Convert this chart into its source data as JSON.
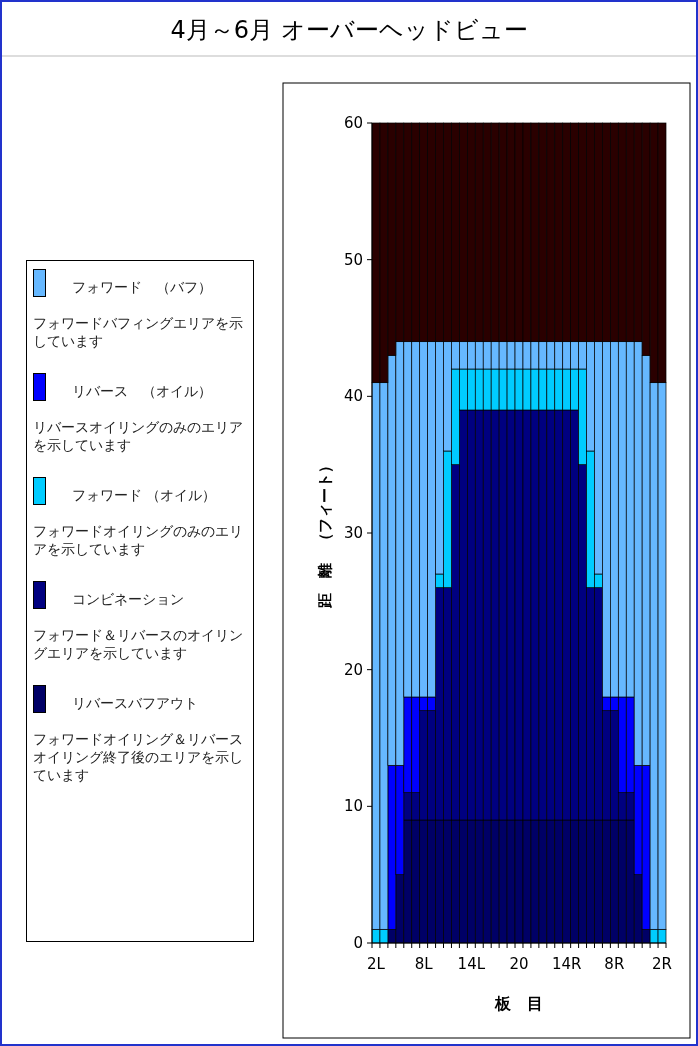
{
  "chart_data": {
    "type": "bar",
    "stacked": true,
    "title": "4月～6月 オーバーヘッドビュー",
    "xlabel": "板　目",
    "ylabel": "距　離　（フィート）",
    "categories": [
      "2L",
      null,
      null,
      null,
      null,
      null,
      "8L",
      null,
      null,
      null,
      null,
      null,
      "14L",
      null,
      null,
      null,
      null,
      null,
      "20",
      null,
      null,
      null,
      null,
      null,
      "14R",
      null,
      null,
      null,
      null,
      null,
      "8R",
      null,
      null,
      null,
      null,
      null,
      "2R"
    ],
    "series": [
      {
        "name": "リバースバフアウト",
        "color": "#000066",
        "values": [
          0,
          0,
          1,
          5,
          9,
          9,
          9,
          9,
          9,
          9,
          9,
          9,
          9,
          9,
          9,
          9,
          9,
          9,
          9,
          9,
          9,
          9,
          9,
          9,
          9,
          9,
          9,
          9,
          9,
          9,
          9,
          9,
          9,
          5,
          1,
          0,
          0
        ]
      },
      {
        "name": "コンビネーション",
        "color": "#000080",
        "values": [
          0,
          0,
          0,
          0,
          2,
          2,
          8,
          8,
          17,
          17,
          26,
          30,
          30,
          30,
          30,
          30,
          30,
          30,
          30,
          30,
          30,
          30,
          30,
          30,
          30,
          30,
          26,
          17,
          17,
          8,
          8,
          2,
          2,
          0,
          0,
          0,
          0
        ]
      },
      {
        "name": "フォワード （オイル）",
        "color": "#00ccff",
        "values": [
          1,
          1,
          0,
          0,
          0,
          0,
          0,
          0,
          1,
          10,
          7,
          3,
          3,
          3,
          3,
          3,
          3,
          3,
          3,
          3,
          3,
          3,
          3,
          3,
          3,
          3,
          7,
          10,
          1,
          0,
          0,
          0,
          0,
          0,
          0,
          1,
          1
        ]
      },
      {
        "name": "リバース　（オイル）",
        "color": "#0000ff",
        "values": [
          0,
          0,
          12,
          8,
          7,
          7,
          1,
          1,
          0,
          0,
          0,
          0,
          0,
          0,
          0,
          0,
          0,
          0,
          0,
          0,
          0,
          0,
          0,
          0,
          0,
          0,
          0,
          0,
          0,
          1,
          1,
          7,
          7,
          8,
          12,
          0,
          0
        ]
      },
      {
        "name": "フォワード　（バフ）",
        "color": "#66b8ff",
        "values": [
          40,
          40,
          30,
          31,
          26,
          26,
          26,
          26,
          17,
          8,
          2,
          2,
          2,
          2,
          2,
          2,
          2,
          2,
          2,
          2,
          2,
          2,
          2,
          2,
          2,
          2,
          2,
          8,
          17,
          26,
          26,
          26,
          26,
          31,
          30,
          40,
          40
        ]
      },
      {
        "color": "#2a0000",
        "values": [
          19,
          19,
          17,
          16,
          16,
          16,
          16,
          16,
          16,
          16,
          16,
          16,
          16,
          16,
          16,
          16,
          16,
          16,
          16,
          16,
          16,
          16,
          16,
          16,
          16,
          16,
          16,
          16,
          16,
          16,
          16,
          16,
          16,
          16,
          17,
          19,
          19
        ]
      }
    ],
    "ylim": [
      0,
      60
    ],
    "yticks": [
      0,
      10,
      20,
      30,
      40,
      50,
      60
    ],
    "legend": "left",
    "annotations": [
      "フォワードバフィングエリアを示しています",
      "リバースオイリングのみのエリアを示しています",
      "フォワードオイリングのみのエリアを示しています",
      "フォワード＆リバースのオイリングエリアを示しています",
      "フォワードオイリング＆リバースオイリング終了後のエリアを示しています"
    ]
  }
}
